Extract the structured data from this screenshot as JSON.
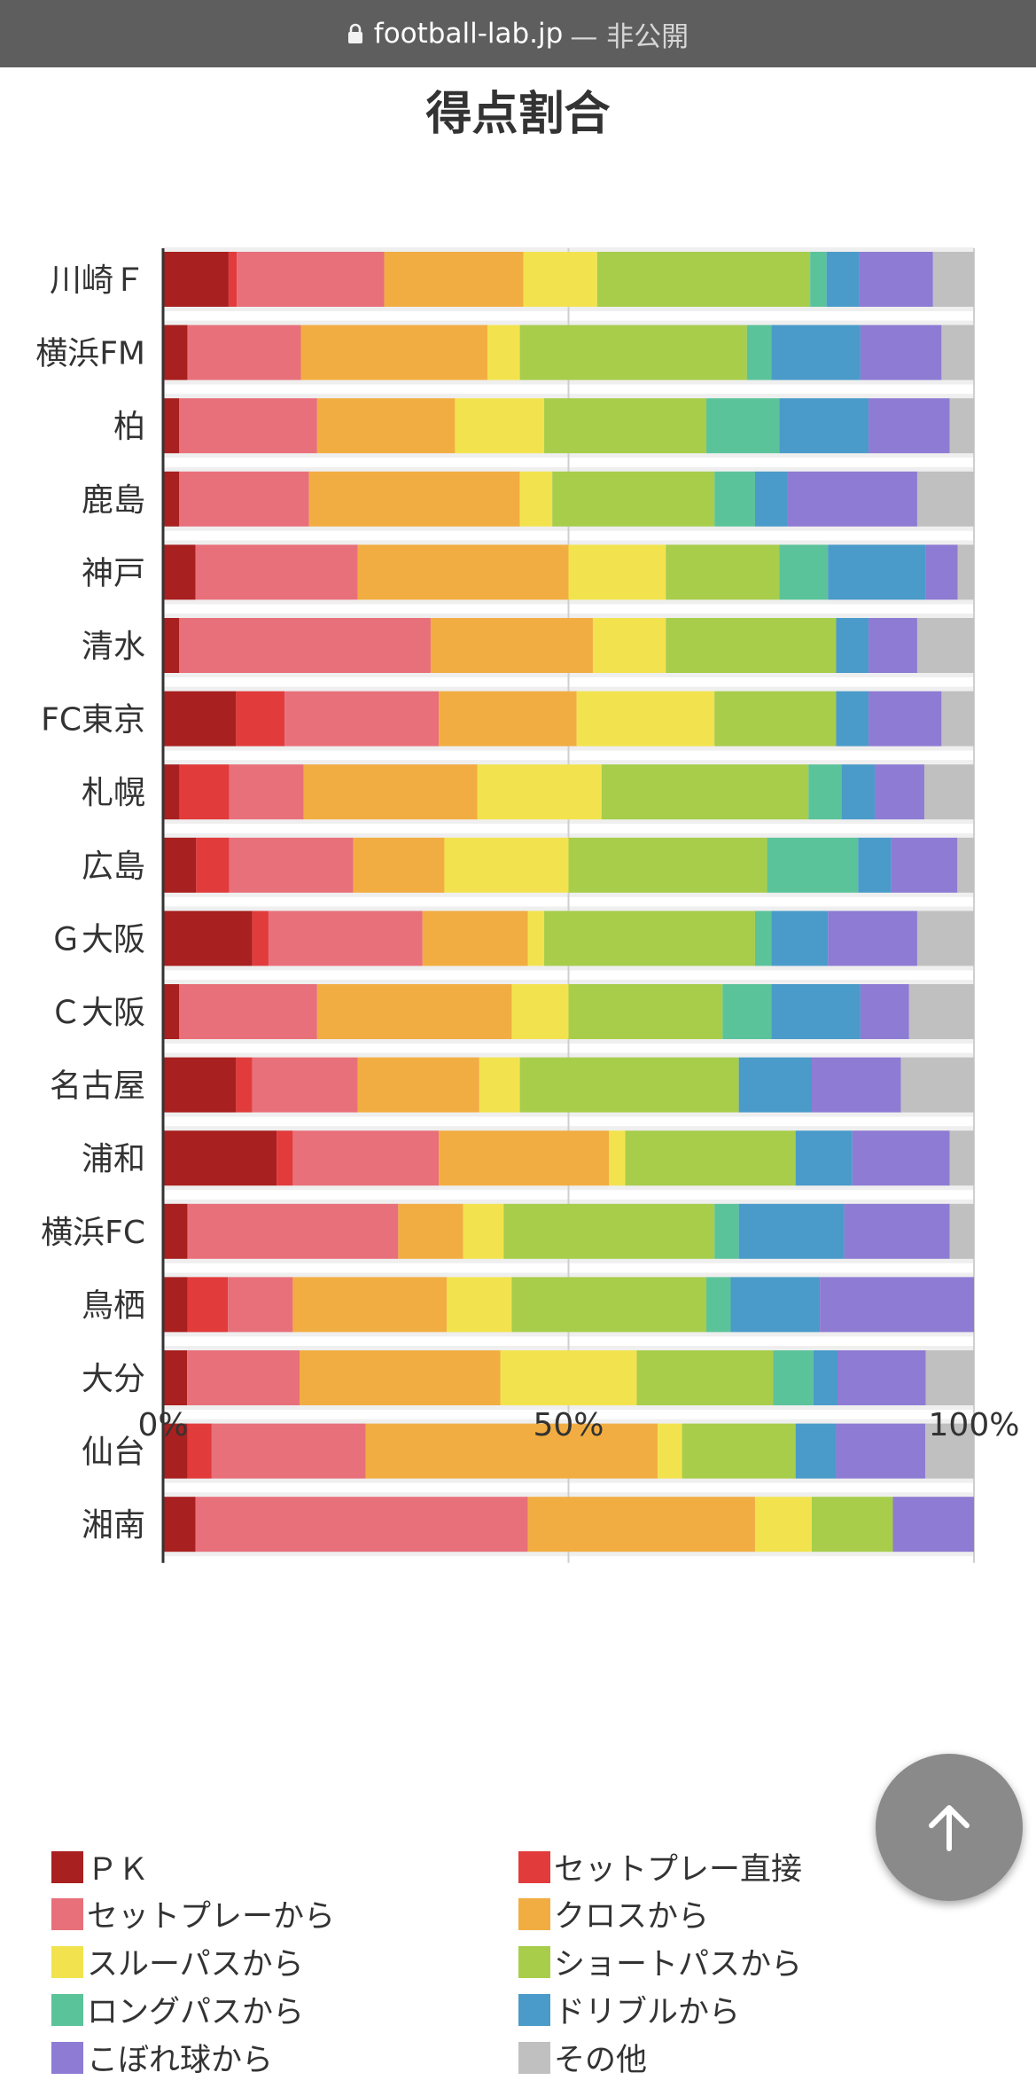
{
  "browser": {
    "host": "football-lab.jp",
    "status": "— 非公開",
    "lock_icon": "lock-icon"
  },
  "page": {
    "title": "得点割合"
  },
  "colors": {
    "pk": "#a8201f",
    "set_direct": "#e23b3b",
    "set_from": "#e8707a",
    "cross": "#f2ad42",
    "through": "#f2e34e",
    "short": "#a7cd4b",
    "long": "#5bc39a",
    "dribble": "#4a9bc9",
    "loose": "#8e7bd3",
    "other": "#c0c0c0",
    "row_bg": "#efefef"
  },
  "chart_data": {
    "type": "bar",
    "orientation": "horizontal",
    "stacked": true,
    "xlim": [
      0,
      100
    ],
    "xticks": [
      "0%",
      "50%",
      "100%"
    ],
    "grid": true,
    "legend_position": "bottom",
    "categories": [
      "川崎Ｆ",
      "横浜FM",
      "柏",
      "鹿島",
      "神戸",
      "清水",
      "FC東京",
      "札幌",
      "広島",
      "Ｇ大阪",
      "Ｃ大阪",
      "名古屋",
      "浦和",
      "横浜FC",
      "鳥栖",
      "大分",
      "仙台",
      "湘南"
    ],
    "series": [
      {
        "name": "ＰＫ",
        "color": "#a8201f",
        "values": [
          8,
          3,
          2,
          2,
          4,
          2,
          9,
          2,
          4,
          11,
          2,
          9,
          14,
          3,
          3,
          3,
          3,
          4
        ]
      },
      {
        "name": "セットプレー直接",
        "color": "#e23b3b",
        "values": [
          1,
          0,
          0,
          0,
          0,
          0,
          6,
          6,
          4,
          2,
          0,
          2,
          2,
          0,
          5,
          0,
          3,
          0
        ]
      },
      {
        "name": "セットプレーから",
        "color": "#e8707a",
        "values": [
          18,
          14,
          17,
          16,
          20,
          31,
          19,
          9,
          15,
          19,
          17,
          13,
          18,
          26,
          8,
          14,
          19,
          41
        ]
      },
      {
        "name": "クロスから",
        "color": "#f2ad42",
        "values": [
          17,
          23,
          17,
          26,
          26,
          20,
          17,
          21,
          11,
          13,
          24,
          15,
          21,
          8,
          19,
          25,
          36,
          28
        ]
      },
      {
        "name": "スルーパスから",
        "color": "#f2e34e",
        "values": [
          9,
          4,
          11,
          4,
          12,
          9,
          17,
          15,
          15,
          2,
          7,
          5,
          2,
          5,
          8,
          17,
          3,
          7
        ]
      },
      {
        "name": "ショートパスから",
        "color": "#a7cd4b",
        "values": [
          26,
          28,
          20,
          20,
          14,
          21,
          15,
          25,
          24,
          26,
          19,
          27,
          21,
          26,
          24,
          17,
          14,
          10
        ]
      },
      {
        "name": "ロングパスから",
        "color": "#5bc39a",
        "values": [
          2,
          3,
          9,
          5,
          6,
          0,
          0,
          4,
          11,
          2,
          6,
          0,
          0,
          3,
          3,
          5,
          0,
          0
        ]
      },
      {
        "name": "ドリブルから",
        "color": "#4a9bc9",
        "values": [
          4,
          11,
          11,
          4,
          12,
          4,
          4,
          4,
          4,
          7,
          11,
          9,
          7,
          13,
          11,
          3,
          5,
          0
        ]
      },
      {
        "name": "こぼれ球から",
        "color": "#8e7bd3",
        "values": [
          9,
          10,
          10,
          16,
          4,
          6,
          9,
          6,
          8,
          11,
          6,
          11,
          12,
          13,
          19,
          11,
          11,
          10
        ]
      },
      {
        "name": "その他",
        "color": "#c0c0c0",
        "values": [
          5,
          4,
          3,
          7,
          2,
          7,
          4,
          6,
          2,
          7,
          8,
          9,
          3,
          3,
          0,
          6,
          6,
          0
        ]
      }
    ]
  },
  "ui": {
    "scroll_top_icon": "arrow-up-icon"
  }
}
